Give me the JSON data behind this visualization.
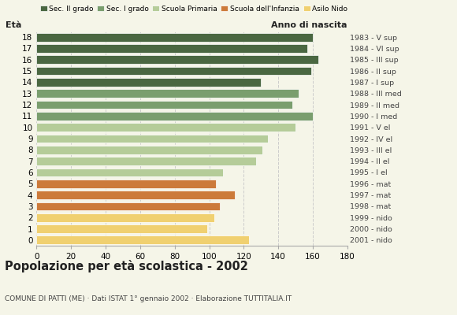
{
  "ages": [
    18,
    17,
    16,
    15,
    14,
    13,
    12,
    11,
    10,
    9,
    8,
    7,
    6,
    5,
    4,
    3,
    2,
    1,
    0
  ],
  "values": [
    160,
    157,
    163,
    159,
    130,
    152,
    148,
    160,
    150,
    134,
    131,
    127,
    108,
    104,
    115,
    106,
    103,
    99,
    123
  ],
  "anni_nascita": [
    "1983 - V sup",
    "1984 - VI sup",
    "1985 - III sup",
    "1986 - II sup",
    "1987 - I sup",
    "1988 - III med",
    "1989 - II med",
    "1990 - I med",
    "1991 - V el",
    "1992 - IV el",
    "1993 - III el",
    "1994 - II el",
    "1995 - I el",
    "1996 - mat",
    "1997 - mat",
    "1998 - mat",
    "1999 - nido",
    "2000 - nido",
    "2001 - nido"
  ],
  "categories": {
    "sec2": {
      "ages": [
        18,
        17,
        16,
        15,
        14
      ],
      "color": "#4a6741"
    },
    "sec1": {
      "ages": [
        13,
        12,
        11
      ],
      "color": "#7a9e6e"
    },
    "primaria": {
      "ages": [
        10,
        9,
        8,
        7,
        6
      ],
      "color": "#b5cc99"
    },
    "infanzia": {
      "ages": [
        5,
        4,
        3
      ],
      "color": "#cc7a3a"
    },
    "nido": {
      "ages": [
        2,
        1,
        0
      ],
      "color": "#f0d070"
    }
  },
  "legend_labels": [
    "Sec. II grado",
    "Sec. I grado",
    "Scuola Primaria",
    "Scuola dell'Infanzia",
    "Asilo Nido"
  ],
  "legend_colors": [
    "#4a6741",
    "#7a9e6e",
    "#b5cc99",
    "#cc7a3a",
    "#f0d070"
  ],
  "xlim": [
    0,
    180
  ],
  "xticks": [
    0,
    20,
    40,
    60,
    80,
    100,
    120,
    140,
    160,
    180
  ],
  "title": "Popolazione per età scolastica - 2002",
  "subtitle": "COMUNE DI PATTI (ME) · Dati ISTAT 1° gennaio 2002 · Elaborazione TUTTITALIA.IT",
  "ylabel_left": "Età",
  "ylabel_right": "Anno di nascita",
  "grid_color": "#cccccc",
  "bar_height": 0.75,
  "background_color": "#f5f5e8"
}
